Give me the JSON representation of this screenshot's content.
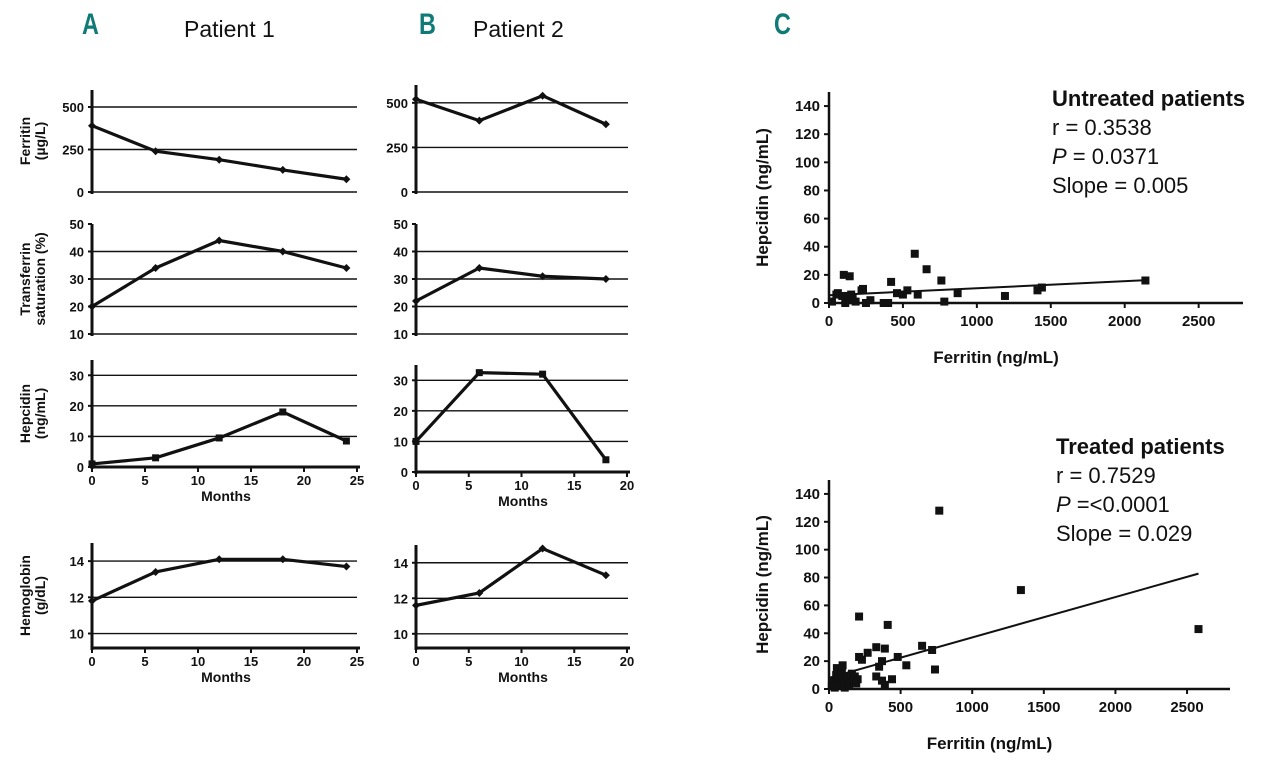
{
  "panels": {
    "A": {
      "letter": "A",
      "title": "Patient 1"
    },
    "B": {
      "letter": "B",
      "title": "Patient 2"
    },
    "C": {
      "letter": "C"
    }
  },
  "stats": {
    "untreated": {
      "heading": "Untreated patients",
      "r": "r = 0.3538",
      "p_label": "P",
      "p_value": " = 0.0371",
      "slope": "Slope = 0.005"
    },
    "treated": {
      "heading": "Treated patients",
      "r": "r = 0.7529",
      "p_label": "P",
      "p_value": " =<0.0001",
      "slope": "Slope = 0.029"
    }
  },
  "chart_data": [
    {
      "id": "p1-ferritin",
      "type": "line",
      "panel": "A",
      "ylabel": [
        "Ferritin",
        "(µg/L)"
      ],
      "xlabel": "",
      "x": [
        0,
        6,
        12,
        18,
        24
      ],
      "values": [
        390,
        240,
        190,
        130,
        75
      ],
      "ylim": [
        0,
        600
      ],
      "xlim": [
        0,
        25
      ],
      "yticks": [
        0,
        250,
        500
      ],
      "gridlines": [
        0,
        250,
        500
      ],
      "xticks": [],
      "marker": "diamond"
    },
    {
      "id": "p1-tsat",
      "type": "line",
      "panel": "A",
      "ylabel": [
        "Transferrin",
        "saturation (%)"
      ],
      "xlabel": "",
      "x": [
        0,
        6,
        12,
        18,
        24
      ],
      "values": [
        20,
        34,
        44,
        40,
        34
      ],
      "ylim": [
        10,
        50
      ],
      "xlim": [
        0,
        25
      ],
      "yticks": [
        10,
        20,
        30,
        40,
        50
      ],
      "gridlines": [
        10,
        20,
        30,
        40
      ],
      "xticks": [],
      "marker": "diamond"
    },
    {
      "id": "p1-hepcidin",
      "type": "line",
      "panel": "A",
      "ylabel": [
        "Hepcidin",
        "(ng/mL)"
      ],
      "xlabel": "Months",
      "x": [
        0,
        6,
        12,
        18,
        24
      ],
      "values": [
        1,
        3,
        9.5,
        18,
        8.5
      ],
      "ylim": [
        0,
        35
      ],
      "xlim": [
        0,
        25
      ],
      "yticks": [
        0,
        10,
        20,
        30
      ],
      "gridlines": [
        10,
        20,
        30
      ],
      "xticks": [
        0,
        5,
        10,
        15,
        20,
        25
      ],
      "marker": "square"
    },
    {
      "id": "p1-hemoglobin",
      "type": "line",
      "panel": "A",
      "ylabel": [
        "Hemoglobin",
        "(g/dL)"
      ],
      "xlabel": "Months",
      "x": [
        0,
        6,
        12,
        18,
        24
      ],
      "values": [
        11.8,
        13.4,
        14.1,
        14.1,
        13.7
      ],
      "ylim": [
        9.2,
        15
      ],
      "xlim": [
        0,
        25
      ],
      "yticks": [
        10,
        12,
        14
      ],
      "gridlines": [
        10,
        12,
        14
      ],
      "xticks": [
        0,
        5,
        10,
        15,
        20,
        25
      ],
      "marker": "diamond"
    },
    {
      "id": "p2-ferritin",
      "type": "line",
      "panel": "B",
      "ylabel": [],
      "xlabel": "",
      "x": [
        0,
        6,
        12,
        18
      ],
      "values": [
        520,
        400,
        540,
        380
      ],
      "ylim": [
        0,
        600
      ],
      "xlim": [
        0,
        20
      ],
      "yticks": [
        0,
        250,
        500
      ],
      "gridlines": [
        0,
        250,
        500
      ],
      "xticks": [],
      "marker": "diamond"
    },
    {
      "id": "p2-tsat",
      "type": "line",
      "panel": "B",
      "ylabel": [],
      "xlabel": "",
      "x": [
        0,
        6,
        12,
        18
      ],
      "values": [
        22,
        34,
        31,
        30
      ],
      "ylim": [
        10,
        50
      ],
      "xlim": [
        0,
        20
      ],
      "yticks": [
        10,
        20,
        30,
        40,
        50
      ],
      "gridlines": [
        10,
        20,
        30,
        40
      ],
      "xticks": [],
      "marker": "diamond"
    },
    {
      "id": "p2-hepcidin",
      "type": "line",
      "panel": "B",
      "ylabel": [],
      "xlabel": "Months",
      "x": [
        0,
        6,
        12,
        18
      ],
      "values": [
        10,
        32.5,
        32,
        4
      ],
      "ylim": [
        0,
        35
      ],
      "xlim": [
        0,
        20
      ],
      "yticks": [
        0,
        10,
        20,
        30
      ],
      "gridlines": [
        10,
        20,
        30
      ],
      "xticks": [
        0,
        5,
        10,
        15,
        20
      ],
      "marker": "square"
    },
    {
      "id": "p2-hemoglobin",
      "type": "line",
      "panel": "B",
      "ylabel": [],
      "xlabel": "Months",
      "x": [
        0,
        6,
        12,
        18
      ],
      "values": [
        11.6,
        12.3,
        14.8,
        13.3
      ],
      "ylim": [
        9.2,
        15
      ],
      "xlim": [
        0,
        20
      ],
      "yticks": [
        10,
        12,
        14
      ],
      "gridlines": [
        10,
        12,
        14
      ],
      "xticks": [
        0,
        5,
        10,
        15,
        20
      ],
      "marker": "diamond"
    },
    {
      "id": "untreated-scatter",
      "type": "scatter",
      "panel": "C",
      "title": "Untreated patients",
      "xlabel": "Ferritin (ng/mL)",
      "ylabel": "Hepcidin (ng/mL)",
      "xlim": [
        0,
        2800
      ],
      "ylim": [
        0,
        150
      ],
      "xticks": [
        0,
        500,
        1000,
        1500,
        2000,
        2500
      ],
      "yticks": [
        0,
        20,
        40,
        60,
        80,
        100,
        120,
        140
      ],
      "points": [
        [
          20,
          1
        ],
        [
          50,
          6
        ],
        [
          60,
          7
        ],
        [
          90,
          5
        ],
        [
          100,
          20
        ],
        [
          110,
          0
        ],
        [
          120,
          5
        ],
        [
          130,
          2
        ],
        [
          140,
          19
        ],
        [
          150,
          6
        ],
        [
          160,
          3
        ],
        [
          180,
          1
        ],
        [
          220,
          9
        ],
        [
          230,
          10
        ],
        [
          250,
          0
        ],
        [
          280,
          2
        ],
        [
          370,
          0
        ],
        [
          400,
          0
        ],
        [
          420,
          15
        ],
        [
          460,
          7
        ],
        [
          500,
          6
        ],
        [
          530,
          9
        ],
        [
          580,
          35
        ],
        [
          600,
          6
        ],
        [
          660,
          24
        ],
        [
          760,
          16
        ],
        [
          780,
          1
        ],
        [
          870,
          7
        ],
        [
          1190,
          5
        ],
        [
          1410,
          9
        ],
        [
          1440,
          11
        ],
        [
          2140,
          16
        ]
      ],
      "regression": {
        "slope": 0.005,
        "intercept": 5.5,
        "x_range": [
          0,
          2140
        ]
      }
    },
    {
      "id": "treated-scatter",
      "type": "scatter",
      "panel": "C",
      "title": "Treated patients",
      "xlabel": "Ferritin (ng/mL)",
      "ylabel": "Hepcidin (ng/mL)",
      "xlim": [
        0,
        2800
      ],
      "ylim": [
        0,
        150
      ],
      "xticks": [
        0,
        500,
        1000,
        1500,
        2000,
        2500
      ],
      "yticks": [
        0,
        20,
        40,
        60,
        80,
        100,
        120,
        140
      ],
      "points": [
        [
          20,
          2
        ],
        [
          30,
          6
        ],
        [
          40,
          1
        ],
        [
          50,
          10
        ],
        [
          55,
          15
        ],
        [
          60,
          4
        ],
        [
          70,
          8
        ],
        [
          80,
          3
        ],
        [
          90,
          12
        ],
        [
          95,
          17
        ],
        [
          100,
          6
        ],
        [
          110,
          1
        ],
        [
          120,
          9
        ],
        [
          130,
          5
        ],
        [
          140,
          3
        ],
        [
          150,
          8
        ],
        [
          160,
          11
        ],
        [
          170,
          6
        ],
        [
          180,
          9
        ],
        [
          190,
          4
        ],
        [
          200,
          7
        ],
        [
          210,
          52
        ],
        [
          210,
          23
        ],
        [
          230,
          21
        ],
        [
          270,
          26
        ],
        [
          330,
          30
        ],
        [
          330,
          9
        ],
        [
          350,
          16
        ],
        [
          370,
          20
        ],
        [
          370,
          6
        ],
        [
          390,
          29
        ],
        [
          390,
          3
        ],
        [
          410,
          46
        ],
        [
          440,
          7
        ],
        [
          480,
          23
        ],
        [
          540,
          17
        ],
        [
          650,
          31
        ],
        [
          720,
          28
        ],
        [
          740,
          14
        ],
        [
          770,
          128
        ],
        [
          1340,
          71
        ],
        [
          2580,
          43
        ]
      ],
      "regression": {
        "slope": 0.029,
        "intercept": 8,
        "x_range": [
          0,
          2580
        ]
      }
    }
  ]
}
